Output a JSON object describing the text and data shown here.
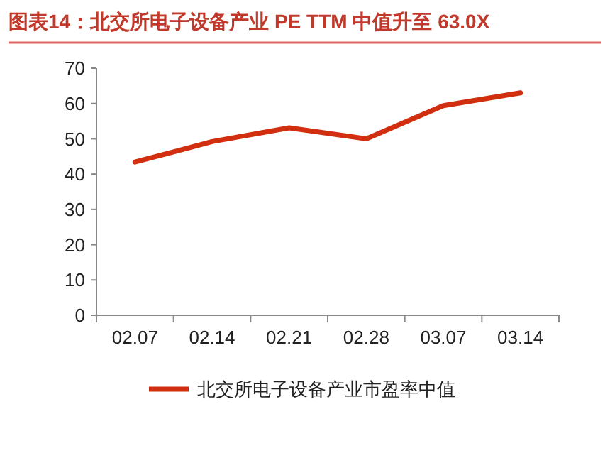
{
  "chart_data": {
    "type": "line",
    "title": "图表14：北交所电子设备产业 PE TTM 中值升至 63.0X",
    "categories": [
      "02.07",
      "02.14",
      "02.21",
      "02.28",
      "03.07",
      "03.14"
    ],
    "series": [
      {
        "name": "北交所电子设备产业市盈率中值",
        "color": "#d22e10",
        "values": [
          43.4,
          49.2,
          53.1,
          50.0,
          59.4,
          63.0
        ]
      }
    ],
    "ylim": [
      0,
      70
    ],
    "yticks": [
      0,
      10,
      20,
      30,
      40,
      50,
      60,
      70
    ],
    "grid": false,
    "legend": "bottom",
    "marker": "none",
    "line_style": "solid"
  }
}
